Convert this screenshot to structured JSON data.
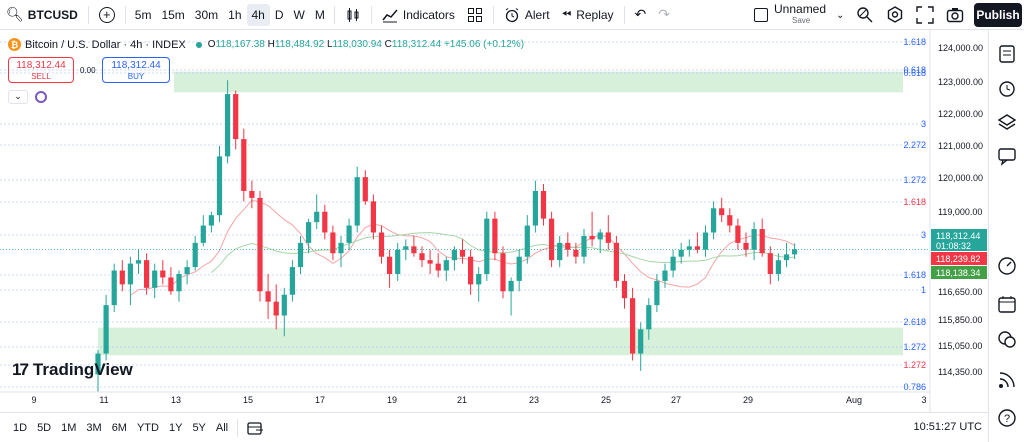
{
  "toolbar": {
    "ticker": "BTCUSD",
    "timeframes": [
      "5m",
      "15m",
      "30m",
      "1h",
      "4h",
      "D",
      "W",
      "M"
    ],
    "active_timeframe": "4h",
    "indicators_label": "Indicators",
    "alert_label": "Alert",
    "replay_label": "Replay",
    "layout_name": "Unnamed",
    "save_label": "Save",
    "publish_label": "Publish"
  },
  "legend": {
    "symbol": "Bitcoin / U.S. Dollar · 4h · INDEX",
    "o_label": "O",
    "o": "118,167.38",
    "h_label": "H",
    "h": "118,484.92",
    "l_label": "L",
    "l": "118,030.94",
    "c_label": "C",
    "c": "118,312.44",
    "change": "+145.06 (+0.12%)"
  },
  "trade": {
    "sell_price": "118,312.44",
    "sell_label": "SELL",
    "spread": "0.00",
    "buy_price": "118,312.44",
    "buy_label": "BUY"
  },
  "brand": "TradingView",
  "bottom": {
    "ranges": [
      "1D",
      "5D",
      "1M",
      "3M",
      "6M",
      "YTD",
      "1Y",
      "5Y",
      "All"
    ],
    "time": "10:51:27 UTC"
  },
  "price_axis": {
    "ticks": [
      "124,000.00",
      "123,000.00",
      "122,000.00",
      "121,000.00",
      "120,000.00",
      "119,000.00",
      "116,650.00",
      "115,850.00",
      "115,050.00",
      "114,350.00"
    ],
    "last_price": "118,312.44",
    "countdown": "01:08:32",
    "ma_red": "118,239.82",
    "ma_green": "118,138.34"
  },
  "fib_labels": [
    "1.618",
    "0.618",
    "0.618",
    "3",
    "2.272",
    "1.272",
    "1.618",
    "3",
    "1.618",
    "1",
    "2.618",
    "1.272",
    "1.272",
    "0.786"
  ],
  "time_axis": [
    "9",
    "11",
    "13",
    "15",
    "17",
    "19",
    "21",
    "23",
    "25",
    "27",
    "29",
    "Aug",
    "3"
  ],
  "colors": {
    "up": "#26a69a",
    "down": "#f23645",
    "ma_fast": "#f7a4a4",
    "ma_slow": "#a5d6a7",
    "zone": "#d6f0da",
    "fib": "#2962ff"
  },
  "chart_data": {
    "type": "candlestick",
    "timeframe": "4h",
    "ylim": [
      113900,
      124500
    ],
    "candles": [
      {
        "o": 114700,
        "h": 115400,
        "l": 114200,
        "c": 115300
      },
      {
        "o": 115300,
        "h": 117000,
        "l": 115100,
        "c": 116700
      },
      {
        "o": 116700,
        "h": 117900,
        "l": 116500,
        "c": 117700
      },
      {
        "o": 117700,
        "h": 118000,
        "l": 117100,
        "c": 117300
      },
      {
        "o": 117300,
        "h": 118100,
        "l": 116700,
        "c": 117900
      },
      {
        "o": 117900,
        "h": 118300,
        "l": 117600,
        "c": 118000
      },
      {
        "o": 118000,
        "h": 118200,
        "l": 117000,
        "c": 117200
      },
      {
        "o": 117200,
        "h": 117900,
        "l": 116900,
        "c": 117700
      },
      {
        "o": 117700,
        "h": 118000,
        "l": 117300,
        "c": 117500
      },
      {
        "o": 117500,
        "h": 117800,
        "l": 117000,
        "c": 117100
      },
      {
        "o": 117100,
        "h": 117700,
        "l": 116800,
        "c": 117600
      },
      {
        "o": 117600,
        "h": 118000,
        "l": 117300,
        "c": 117800
      },
      {
        "o": 117800,
        "h": 118700,
        "l": 117700,
        "c": 118500
      },
      {
        "o": 118500,
        "h": 119300,
        "l": 118400,
        "c": 119000
      },
      {
        "o": 119000,
        "h": 119400,
        "l": 118800,
        "c": 119300
      },
      {
        "o": 119300,
        "h": 121300,
        "l": 119100,
        "c": 121000
      },
      {
        "o": 121000,
        "h": 123200,
        "l": 120800,
        "c": 122800
      },
      {
        "o": 122800,
        "h": 122900,
        "l": 121200,
        "c": 121500
      },
      {
        "o": 121500,
        "h": 121800,
        "l": 119700,
        "c": 120000
      },
      {
        "o": 120000,
        "h": 120300,
        "l": 119500,
        "c": 119800
      },
      {
        "o": 119800,
        "h": 120000,
        "l": 116800,
        "c": 117100
      },
      {
        "o": 117100,
        "h": 117600,
        "l": 116300,
        "c": 116800
      },
      {
        "o": 116800,
        "h": 117300,
        "l": 116000,
        "c": 116400
      },
      {
        "o": 116400,
        "h": 117200,
        "l": 115800,
        "c": 117000
      },
      {
        "o": 117000,
        "h": 118000,
        "l": 116800,
        "c": 117800
      },
      {
        "o": 117800,
        "h": 118700,
        "l": 117600,
        "c": 118500
      },
      {
        "o": 118500,
        "h": 119200,
        "l": 118200,
        "c": 119100
      },
      {
        "o": 119100,
        "h": 119900,
        "l": 118900,
        "c": 119400
      },
      {
        "o": 119400,
        "h": 119600,
        "l": 118600,
        "c": 118800
      },
      {
        "o": 118800,
        "h": 119000,
        "l": 118000,
        "c": 118200
      },
      {
        "o": 118200,
        "h": 118700,
        "l": 117800,
        "c": 118500
      },
      {
        "o": 118500,
        "h": 119200,
        "l": 118300,
        "c": 119000
      },
      {
        "o": 119000,
        "h": 120700,
        "l": 118800,
        "c": 120400
      },
      {
        "o": 120400,
        "h": 120600,
        "l": 119600,
        "c": 119700
      },
      {
        "o": 119700,
        "h": 119900,
        "l": 118600,
        "c": 118800
      },
      {
        "o": 118800,
        "h": 119000,
        "l": 117900,
        "c": 118100
      },
      {
        "o": 118100,
        "h": 118300,
        "l": 117200,
        "c": 117600
      },
      {
        "o": 117600,
        "h": 118500,
        "l": 117400,
        "c": 118300
      },
      {
        "o": 118300,
        "h": 118600,
        "l": 118000,
        "c": 118400
      },
      {
        "o": 118400,
        "h": 118700,
        "l": 118100,
        "c": 118200
      },
      {
        "o": 118200,
        "h": 118400,
        "l": 117800,
        "c": 118000
      },
      {
        "o": 118000,
        "h": 118300,
        "l": 117600,
        "c": 117900
      },
      {
        "o": 117900,
        "h": 118200,
        "l": 117500,
        "c": 117700
      },
      {
        "o": 117700,
        "h": 118100,
        "l": 117400,
        "c": 118000
      },
      {
        "o": 118000,
        "h": 118400,
        "l": 117700,
        "c": 118300
      },
      {
        "o": 118300,
        "h": 118600,
        "l": 117900,
        "c": 118100
      },
      {
        "o": 118100,
        "h": 118300,
        "l": 117000,
        "c": 117300
      },
      {
        "o": 117300,
        "h": 117800,
        "l": 116800,
        "c": 117600
      },
      {
        "o": 117600,
        "h": 119400,
        "l": 117400,
        "c": 119200
      },
      {
        "o": 119200,
        "h": 119400,
        "l": 118000,
        "c": 118200
      },
      {
        "o": 118200,
        "h": 118400,
        "l": 116900,
        "c": 117100
      },
      {
        "o": 117100,
        "h": 117500,
        "l": 116400,
        "c": 117400
      },
      {
        "o": 117400,
        "h": 118300,
        "l": 117100,
        "c": 118100
      },
      {
        "o": 118100,
        "h": 119300,
        "l": 117900,
        "c": 119000
      },
      {
        "o": 119000,
        "h": 120300,
        "l": 118800,
        "c": 120000
      },
      {
        "o": 120000,
        "h": 120200,
        "l": 119000,
        "c": 119200
      },
      {
        "o": 119200,
        "h": 119400,
        "l": 117800,
        "c": 118000
      },
      {
        "o": 118000,
        "h": 118700,
        "l": 117800,
        "c": 118500
      },
      {
        "o": 118500,
        "h": 118800,
        "l": 118100,
        "c": 118300
      },
      {
        "o": 118300,
        "h": 118500,
        "l": 117900,
        "c": 118100
      },
      {
        "o": 118100,
        "h": 118900,
        "l": 117900,
        "c": 118700
      },
      {
        "o": 118700,
        "h": 119400,
        "l": 118400,
        "c": 118600
      },
      {
        "o": 118600,
        "h": 118900,
        "l": 118200,
        "c": 118800
      },
      {
        "o": 118800,
        "h": 119300,
        "l": 118300,
        "c": 118500
      },
      {
        "o": 118500,
        "h": 118700,
        "l": 117200,
        "c": 117400
      },
      {
        "o": 117400,
        "h": 117600,
        "l": 116600,
        "c": 116900
      },
      {
        "o": 116900,
        "h": 117200,
        "l": 115100,
        "c": 115300
      },
      {
        "o": 115300,
        "h": 116200,
        "l": 114800,
        "c": 116000
      },
      {
        "o": 116000,
        "h": 116900,
        "l": 115700,
        "c": 116700
      },
      {
        "o": 116700,
        "h": 117600,
        "l": 116500,
        "c": 117400
      },
      {
        "o": 117400,
        "h": 117900,
        "l": 117200,
        "c": 117700
      },
      {
        "o": 117700,
        "h": 118300,
        "l": 117500,
        "c": 118100
      },
      {
        "o": 118100,
        "h": 118500,
        "l": 117900,
        "c": 118300
      },
      {
        "o": 118300,
        "h": 118600,
        "l": 118100,
        "c": 118400
      },
      {
        "o": 118400,
        "h": 118800,
        "l": 118200,
        "c": 118300
      },
      {
        "o": 118300,
        "h": 119000,
        "l": 118100,
        "c": 118800
      },
      {
        "o": 118800,
        "h": 119700,
        "l": 118600,
        "c": 119500
      },
      {
        "o": 119500,
        "h": 119800,
        "l": 119100,
        "c": 119300
      },
      {
        "o": 119300,
        "h": 119500,
        "l": 118800,
        "c": 119000
      },
      {
        "o": 119000,
        "h": 119200,
        "l": 118300,
        "c": 118500
      },
      {
        "o": 118500,
        "h": 118800,
        "l": 118100,
        "c": 118300
      },
      {
        "o": 118300,
        "h": 119100,
        "l": 118000,
        "c": 118900
      },
      {
        "o": 118900,
        "h": 119200,
        "l": 118100,
        "c": 118200
      },
      {
        "o": 118200,
        "h": 118400,
        "l": 117300,
        "c": 117600
      },
      {
        "o": 117600,
        "h": 118200,
        "l": 117400,
        "c": 118000
      },
      {
        "o": 118000,
        "h": 118500,
        "l": 117800,
        "c": 118167
      },
      {
        "o": 118167,
        "h": 118485,
        "l": 118031,
        "c": 118312
      }
    ],
    "zones": [
      {
        "from": 122850,
        "to": 123450
      },
      {
        "from": 115250,
        "to": 116050
      }
    ]
  }
}
